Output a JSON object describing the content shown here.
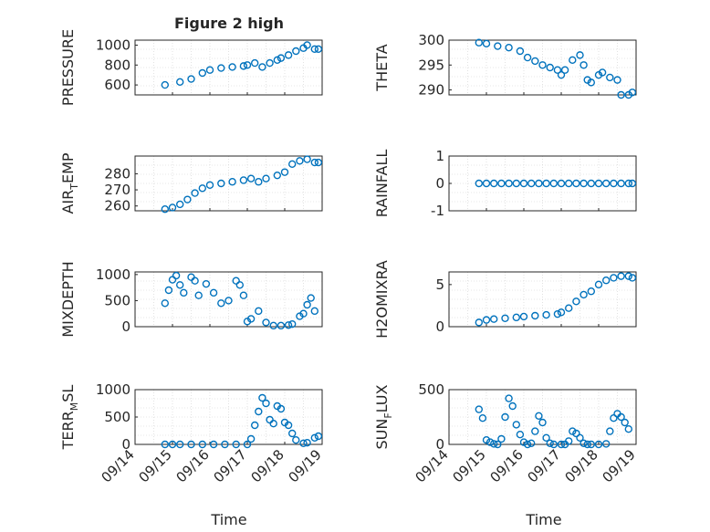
{
  "figure_title": "Figure 2 high",
  "colors": {
    "marker": "#0072BD",
    "axis": "#262626",
    "grid": "#d0d0d0",
    "background": "#ffffff"
  },
  "chart_data": [
    {
      "type": "scatter",
      "ylabel": "PRESSURE",
      "ylim": [
        500,
        1050
      ],
      "yticks": [
        600,
        800,
        1000
      ],
      "xlim": [
        0,
        5
      ],
      "grid": true,
      "x": [
        0.8,
        1.2,
        1.5,
        1.8,
        2.0,
        2.3,
        2.6,
        2.9,
        3.0,
        3.2,
        3.4,
        3.6,
        3.8,
        3.9,
        4.1,
        4.3,
        4.5,
        4.6,
        4.8,
        4.9
      ],
      "y": [
        600,
        630,
        660,
        720,
        750,
        770,
        780,
        790,
        800,
        820,
        780,
        820,
        850,
        870,
        900,
        940,
        970,
        1000,
        960,
        960
      ]
    },
    {
      "type": "scatter",
      "ylabel": "THETA",
      "ylim": [
        289,
        300
      ],
      "yticks": [
        290,
        295,
        300
      ],
      "xlim": [
        0,
        5
      ],
      "grid": true,
      "x": [
        0.8,
        1.0,
        1.3,
        1.6,
        1.9,
        2.1,
        2.3,
        2.5,
        2.7,
        2.9,
        3.0,
        3.1,
        3.3,
        3.5,
        3.6,
        3.7,
        3.8,
        4.0,
        4.1,
        4.3,
        4.5,
        4.6,
        4.8,
        4.9
      ],
      "y": [
        299.5,
        299.3,
        298.8,
        298.5,
        297.8,
        296.5,
        295.8,
        295.0,
        294.5,
        294.0,
        293.0,
        294.0,
        296.0,
        297.0,
        295.0,
        292.0,
        291.5,
        293.0,
        293.5,
        292.5,
        292.0,
        289.0,
        289.0,
        289.5
      ]
    },
    {
      "type": "scatter",
      "ylabel": "AIR_TEMP",
      "ylim": [
        257,
        291
      ],
      "yticks": [
        260,
        270,
        280
      ],
      "xlim": [
        0,
        5
      ],
      "grid": true,
      "x": [
        0.8,
        1.0,
        1.2,
        1.4,
        1.6,
        1.8,
        2.0,
        2.3,
        2.6,
        2.9,
        3.1,
        3.3,
        3.5,
        3.8,
        4.0,
        4.2,
        4.4,
        4.6,
        4.8,
        4.9
      ],
      "y": [
        258,
        259,
        261,
        264,
        268,
        271,
        273,
        274,
        275,
        276,
        277,
        275,
        277,
        279,
        281,
        286,
        288,
        289,
        287,
        287
      ]
    },
    {
      "type": "scatter",
      "ylabel": "RAINFALL",
      "ylim": [
        -1,
        1
      ],
      "yticks": [
        -1,
        0,
        1
      ],
      "xlim": [
        0,
        5
      ],
      "grid": true,
      "x": [
        0.8,
        1.0,
        1.2,
        1.4,
        1.6,
        1.8,
        2.0,
        2.2,
        2.4,
        2.6,
        2.8,
        3.0,
        3.2,
        3.4,
        3.6,
        3.8,
        4.0,
        4.2,
        4.4,
        4.6,
        4.8,
        4.9
      ],
      "y": [
        0,
        0,
        0,
        0,
        0,
        0,
        0,
        0,
        0,
        0,
        0,
        0,
        0,
        0,
        0,
        0,
        0,
        0,
        0,
        0,
        0,
        0
      ]
    },
    {
      "type": "scatter",
      "ylabel": "MIXDEPTH",
      "ylim": [
        0,
        1050
      ],
      "yticks": [
        0,
        500,
        1000
      ],
      "xlim": [
        0,
        5
      ],
      "grid": true,
      "x": [
        0.8,
        0.9,
        1.0,
        1.1,
        1.2,
        1.3,
        1.5,
        1.6,
        1.7,
        1.9,
        2.1,
        2.3,
        2.5,
        2.7,
        2.8,
        2.9,
        3.0,
        3.1,
        3.3,
        3.5,
        3.7,
        3.9,
        4.1,
        4.2,
        4.4,
        4.5,
        4.6,
        4.7,
        4.8
      ],
      "y": [
        450,
        700,
        900,
        980,
        800,
        650,
        950,
        880,
        600,
        820,
        650,
        450,
        500,
        880,
        800,
        600,
        100,
        150,
        300,
        80,
        20,
        20,
        30,
        50,
        200,
        250,
        420,
        550,
        300
      ]
    },
    {
      "type": "scatter",
      "ylabel": "H2OMIXRA",
      "ylim": [
        0,
        6.5
      ],
      "yticks": [
        0,
        5
      ],
      "xlim": [
        0,
        5
      ],
      "grid": true,
      "x": [
        0.8,
        1.0,
        1.2,
        1.5,
        1.8,
        2.0,
        2.3,
        2.6,
        2.9,
        3.0,
        3.2,
        3.4,
        3.6,
        3.8,
        4.0,
        4.2,
        4.4,
        4.6,
        4.8,
        4.9
      ],
      "y": [
        0.5,
        0.8,
        0.9,
        1.0,
        1.1,
        1.2,
        1.3,
        1.4,
        1.5,
        1.7,
        2.2,
        3.0,
        3.8,
        4.2,
        5.0,
        5.5,
        5.8,
        6.0,
        6.0,
        5.8
      ]
    },
    {
      "type": "scatter",
      "ylabel": "TERR_MSL",
      "ylim": [
        0,
        1000
      ],
      "yticks": [
        0,
        500,
        1000
      ],
      "xlim": [
        0,
        5
      ],
      "grid": true,
      "x": [
        0.8,
        1.0,
        1.2,
        1.5,
        1.8,
        2.1,
        2.4,
        2.7,
        3.0,
        3.1,
        3.2,
        3.3,
        3.4,
        3.5,
        3.6,
        3.7,
        3.8,
        3.9,
        4.0,
        4.1,
        4.2,
        4.3,
        4.5,
        4.6,
        4.8,
        4.9
      ],
      "y": [
        0,
        0,
        0,
        0,
        0,
        0,
        0,
        0,
        0,
        100,
        350,
        600,
        850,
        750,
        450,
        380,
        700,
        650,
        400,
        350,
        200,
        80,
        20,
        30,
        120,
        150
      ]
    },
    {
      "type": "scatter",
      "ylabel": "SUN_FLUX",
      "ylim": [
        0,
        500
      ],
      "yticks": [
        0,
        500
      ],
      "xlim": [
        0,
        5
      ],
      "grid": true,
      "x": [
        0.8,
        0.9,
        1.0,
        1.1,
        1.2,
        1.3,
        1.4,
        1.5,
        1.6,
        1.7,
        1.8,
        1.9,
        2.0,
        2.1,
        2.2,
        2.3,
        2.4,
        2.5,
        2.6,
        2.7,
        2.8,
        3.0,
        3.1,
        3.2,
        3.3,
        3.4,
        3.5,
        3.6,
        3.7,
        3.8,
        4.0,
        4.2,
        4.3,
        4.4,
        4.5,
        4.6,
        4.7,
        4.8
      ],
      "y": [
        320,
        240,
        40,
        20,
        5,
        0,
        50,
        250,
        420,
        350,
        180,
        90,
        20,
        0,
        10,
        120,
        260,
        200,
        60,
        10,
        0,
        0,
        0,
        30,
        120,
        100,
        60,
        10,
        0,
        0,
        0,
        5,
        120,
        240,
        280,
        250,
        200,
        140
      ]
    }
  ],
  "x_axis": {
    "tick_labels": [
      "09/14",
      "09/15",
      "09/16",
      "09/17",
      "09/18",
      "09/19"
    ],
    "xlabel": "Time"
  }
}
